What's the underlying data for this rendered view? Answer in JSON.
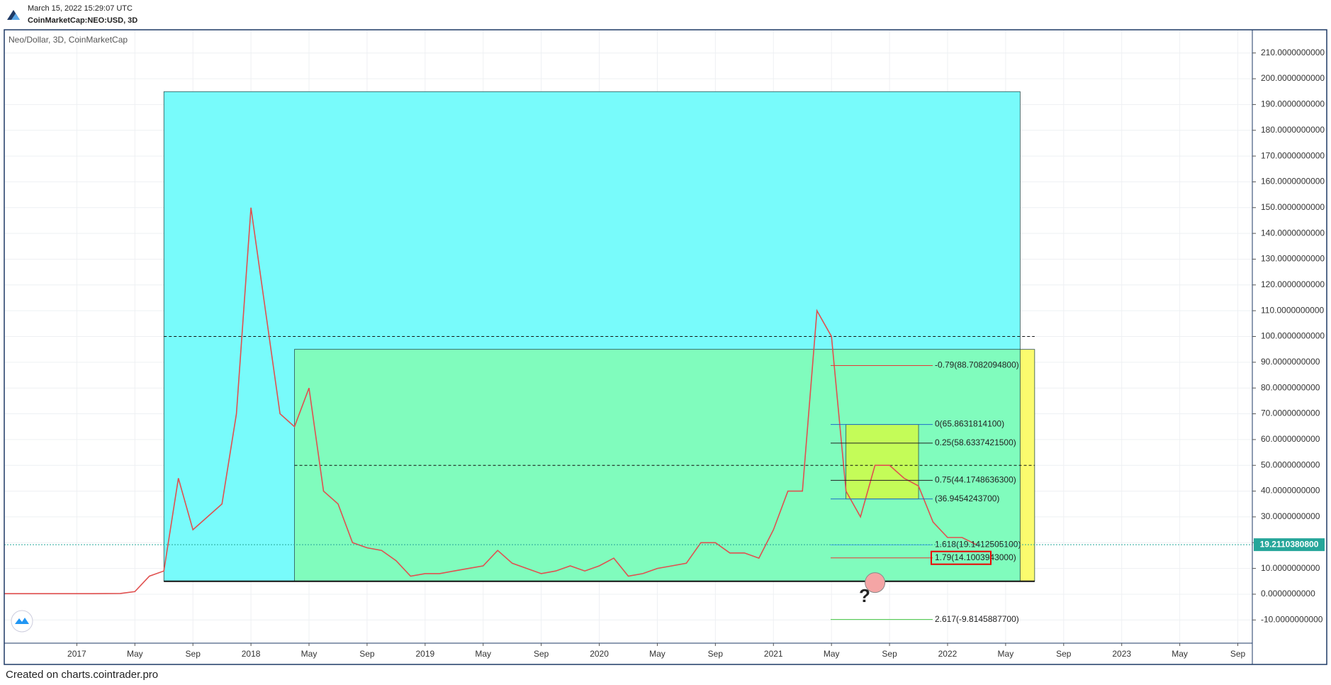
{
  "header": {
    "timestamp": "March 15, 2022 15:29:07 UTC",
    "symbol": "CoinMarketCap:NEO:USD, 3D"
  },
  "footer": "Created on charts.cointrader.pro",
  "chart_data": {
    "type": "line",
    "title": "Neo/Dollar, 3D, CoinMarketCap",
    "annotation": "?",
    "xlim": [
      "2016-08",
      "2023-10"
    ],
    "xticks": [
      {
        "value": "2017-01",
        "label": "2017"
      },
      {
        "value": "2017-05",
        "label": "May"
      },
      {
        "value": "2017-09",
        "label": "Sep"
      },
      {
        "value": "2018-01",
        "label": "2018"
      },
      {
        "value": "2018-05",
        "label": "May"
      },
      {
        "value": "2018-09",
        "label": "Sep"
      },
      {
        "value": "2019-01",
        "label": "2019"
      },
      {
        "value": "2019-05",
        "label": "May"
      },
      {
        "value": "2019-09",
        "label": "Sep"
      },
      {
        "value": "2020-01",
        "label": "2020"
      },
      {
        "value": "2020-05",
        "label": "May"
      },
      {
        "value": "2020-09",
        "label": "Sep"
      },
      {
        "value": "2021-01",
        "label": "2021"
      },
      {
        "value": "2021-05",
        "label": "May"
      },
      {
        "value": "2021-09",
        "label": "Sep"
      },
      {
        "value": "2022-01",
        "label": "2022"
      },
      {
        "value": "2022-05",
        "label": "May"
      },
      {
        "value": "2022-09",
        "label": "Sep"
      },
      {
        "value": "2023-01",
        "label": "2023"
      },
      {
        "value": "2023-05",
        "label": "May"
      },
      {
        "value": "2023-09",
        "label": "Sep"
      }
    ],
    "ylim": [
      -19,
      219
    ],
    "yticks": [
      {
        "value": 210,
        "label": "210.0000000000"
      },
      {
        "value": 200,
        "label": "200.0000000000"
      },
      {
        "value": 190,
        "label": "190.0000000000"
      },
      {
        "value": 180,
        "label": "180.0000000000"
      },
      {
        "value": 170,
        "label": "170.0000000000"
      },
      {
        "value": 160,
        "label": "160.0000000000"
      },
      {
        "value": 150,
        "label": "150.0000000000"
      },
      {
        "value": 140,
        "label": "140.0000000000"
      },
      {
        "value": 130,
        "label": "130.0000000000"
      },
      {
        "value": 120,
        "label": "120.0000000000"
      },
      {
        "value": 110,
        "label": "110.0000000000"
      },
      {
        "value": 100,
        "label": "100.0000000000"
      },
      {
        "value": 90,
        "label": "90.0000000000"
      },
      {
        "value": 80,
        "label": "80.0000000000"
      },
      {
        "value": 70,
        "label": "70.0000000000"
      },
      {
        "value": 60,
        "label": "60.0000000000"
      },
      {
        "value": 50,
        "label": "50.0000000000"
      },
      {
        "value": 40,
        "label": "40.0000000000"
      },
      {
        "value": 30,
        "label": "30.0000000000"
      },
      {
        "value": 20,
        "label": "20.0000000000"
      },
      {
        "value": 10,
        "label": "10.0000000000"
      },
      {
        "value": 0,
        "label": "0.0000000000"
      },
      {
        "value": -10,
        "label": "-10.0000000000"
      }
    ],
    "grid": true,
    "series": [
      {
        "name": "NEO/USD",
        "color": "#e0504f",
        "x": [
          "2016-08",
          "2016-10",
          "2016-12",
          "2017-02",
          "2017-04",
          "2017-05",
          "2017-06",
          "2017-07",
          "2017-08",
          "2017-09",
          "2017-10",
          "2017-11",
          "2017-12",
          "2018-01",
          "2018-02",
          "2018-03",
          "2018-04",
          "2018-05",
          "2018-06",
          "2018-07",
          "2018-08",
          "2018-09",
          "2018-10",
          "2018-11",
          "2018-12",
          "2019-01",
          "2019-02",
          "2019-03",
          "2019-04",
          "2019-05",
          "2019-06",
          "2019-07",
          "2019-08",
          "2019-09",
          "2019-10",
          "2019-11",
          "2019-12",
          "2020-01",
          "2020-02",
          "2020-03",
          "2020-04",
          "2020-05",
          "2020-06",
          "2020-07",
          "2020-08",
          "2020-09",
          "2020-10",
          "2020-11",
          "2020-12",
          "2021-01",
          "2021-02",
          "2021-03",
          "2021-04",
          "2021-05",
          "2021-06",
          "2021-07",
          "2021-08",
          "2021-09",
          "2021-10",
          "2021-11",
          "2021-12",
          "2022-01",
          "2022-02",
          "2022-03"
        ],
        "values": [
          0.2,
          0.2,
          0.2,
          0.2,
          0.3,
          1,
          7,
          9,
          45,
          25,
          30,
          35,
          70,
          150,
          110,
          70,
          65,
          80,
          40,
          35,
          20,
          18,
          17,
          13,
          7,
          8,
          8,
          9,
          10,
          11,
          17,
          12,
          10,
          8,
          9,
          11,
          9,
          11,
          14,
          7,
          8,
          10,
          11,
          12,
          20,
          20,
          16,
          16,
          14,
          25,
          40,
          40,
          110,
          100,
          40,
          30,
          50,
          50,
          45,
          42,
          28,
          22,
          22,
          19.2
        ]
      }
    ],
    "last_price": {
      "value": 19.21103808,
      "label": "19.2110380800",
      "color": "#26a69a"
    },
    "boxes": [
      {
        "from": "2017-07",
        "to": "2022-06",
        "low": 5,
        "high": 195,
        "color": "#78fbfb"
      },
      {
        "from": "2018-04",
        "to": "2022-06",
        "low": 5,
        "high": 95,
        "color": "#80fcbd"
      },
      {
        "from": "2022-06",
        "to": "2022-07",
        "low": 5,
        "high": 95,
        "color": "#fbfb6e"
      },
      {
        "from": "2021-06",
        "to": "2021-11",
        "low": 36.94542437,
        "high": 65.86318141,
        "color": "#c4fc58"
      }
    ],
    "dashed_levels": [
      100,
      50
    ],
    "base_level": 5,
    "fib_levels": [
      {
        "label": "-0.79(88.7082094800)",
        "value": 88.70820948,
        "color": "#e53935"
      },
      {
        "label": "0(65.8631814100)",
        "value": 65.86318141,
        "color": "#1e6fc8"
      },
      {
        "label": "0.25(58.6337421500)",
        "value": 58.63374215,
        "color": "#222222"
      },
      {
        "label": "0.75(44.1748636300)",
        "value": 44.17486363,
        "color": "#222222"
      },
      {
        "label": "(36.9454243700)",
        "value": 36.94542437,
        "color": "#1e6fc8"
      },
      {
        "label": "1.618(19.1412505100)",
        "value": 19.14125051,
        "color": "#42a5f5"
      },
      {
        "label": "1.79(14.1003943000)",
        "value": 14.1003943,
        "color": "#e53935"
      },
      {
        "label": "2.617(-9.8145887700)",
        "value": -9.81458877,
        "color": "#43c743"
      }
    ],
    "target": {
      "x": "2021-08",
      "value": 4.5,
      "color": "#f4a5a5"
    }
  }
}
